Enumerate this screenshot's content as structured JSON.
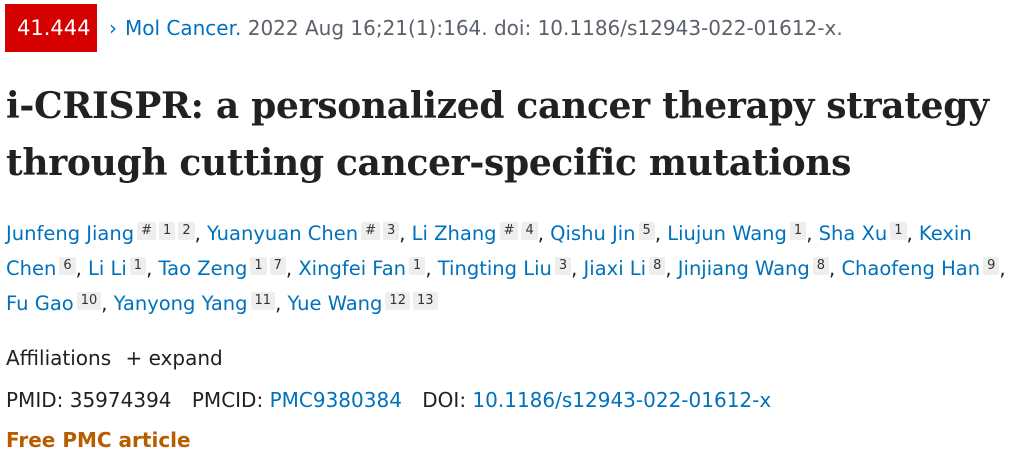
{
  "impact_badge": "41.444",
  "citation": {
    "journal": "Mol Cancer.",
    "details": "2022 Aug 16;21(1):164. doi: 10.1186/s12943-022-01612-x."
  },
  "title": "i-CRISPR: a personalized cancer therapy strategy through cutting cancer-specific mutations",
  "authors": [
    {
      "name": "Junfeng Jiang",
      "sups": [
        "#",
        "1",
        "2"
      ]
    },
    {
      "name": "Yuanyuan Chen",
      "sups": [
        "#",
        "3"
      ]
    },
    {
      "name": "Li Zhang",
      "sups": [
        "#",
        "4"
      ]
    },
    {
      "name": "Qishu Jin",
      "sups": [
        "5"
      ]
    },
    {
      "name": "Liujun Wang",
      "sups": [
        "1"
      ]
    },
    {
      "name": "Sha Xu",
      "sups": [
        "1"
      ]
    },
    {
      "name": "Kexin Chen",
      "sups": [
        "6"
      ]
    },
    {
      "name": "Li Li",
      "sups": [
        "1"
      ]
    },
    {
      "name": "Tao Zeng",
      "sups": [
        "1",
        "7"
      ]
    },
    {
      "name": "Xingfei Fan",
      "sups": [
        "1"
      ]
    },
    {
      "name": "Tingting Liu",
      "sups": [
        "3"
      ]
    },
    {
      "name": "Jiaxi Li",
      "sups": [
        "8"
      ]
    },
    {
      "name": "Jinjiang Wang",
      "sups": [
        "8"
      ]
    },
    {
      "name": "Chaofeng Han",
      "sups": [
        "9"
      ]
    },
    {
      "name": "Fu Gao",
      "sups": [
        "10"
      ]
    },
    {
      "name": "Yanyong Yang",
      "sups": [
        "11"
      ]
    },
    {
      "name": "Yue Wang",
      "sups": [
        "12",
        "13"
      ]
    }
  ],
  "affiliations": {
    "label": "Affiliations",
    "expand": "+ expand"
  },
  "ids": {
    "pmid_label": "PMID:",
    "pmid": "35974394",
    "pmcid_label": "PMCID:",
    "pmcid": "PMC9380384",
    "doi_label": "DOI:",
    "doi": "10.1186/s12943-022-01612-x"
  },
  "free_label": "Free PMC article"
}
